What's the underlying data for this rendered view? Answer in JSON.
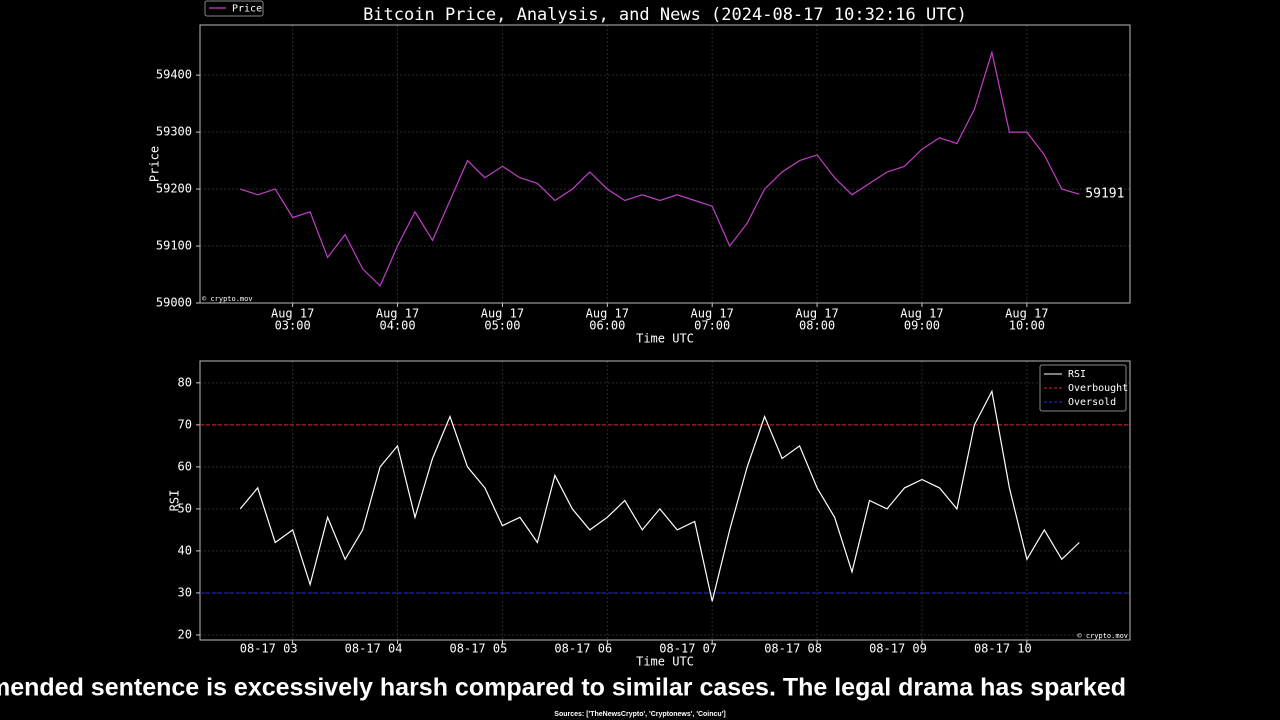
{
  "chart_data": [
    {
      "type": "line",
      "title": "Bitcoin Price, Analysis, and News (2024-08-17 10:32:16 UTC)",
      "xlabel": "Time UTC",
      "ylabel": "Price",
      "watermark": "© crypto.mov",
      "x": [
        "08-17 02:30",
        "08-17 02:40",
        "08-17 02:50",
        "08-17 03:00",
        "08-17 03:10",
        "08-17 03:20",
        "08-17 03:30",
        "08-17 03:40",
        "08-17 03:50",
        "08-17 04:00",
        "08-17 04:10",
        "08-17 04:20",
        "08-17 04:30",
        "08-17 04:40",
        "08-17 04:50",
        "08-17 05:00",
        "08-17 05:10",
        "08-17 05:20",
        "08-17 05:30",
        "08-17 05:40",
        "08-17 05:50",
        "08-17 06:00",
        "08-17 06:10",
        "08-17 06:20",
        "08-17 06:30",
        "08-17 06:40",
        "08-17 06:50",
        "08-17 07:00",
        "08-17 07:10",
        "08-17 07:20",
        "08-17 07:30",
        "08-17 07:40",
        "08-17 07:50",
        "08-17 08:00",
        "08-17 08:10",
        "08-17 08:20",
        "08-17 08:30",
        "08-17 08:40",
        "08-17 08:50",
        "08-17 09:00",
        "08-17 09:10",
        "08-17 09:20",
        "08-17 09:30",
        "08-17 09:40",
        "08-17 09:50",
        "08-17 10:00",
        "08-17 10:10",
        "08-17 10:20",
        "08-17 10:30"
      ],
      "series": [
        {
          "name": "Price",
          "color": "#c23fc7",
          "values": [
            59200,
            59190,
            59200,
            59150,
            59160,
            59080,
            59120,
            59060,
            59030,
            59100,
            59160,
            59110,
            59180,
            59250,
            59220,
            59240,
            59220,
            59210,
            59180,
            59200,
            59230,
            59200,
            59180,
            59190,
            59180,
            59190,
            59180,
            59170,
            59100,
            59140,
            59200,
            59230,
            59250,
            59260,
            59220,
            59190,
            59210,
            59230,
            59240,
            59270,
            59290,
            59280,
            59340,
            59440,
            59300,
            59300,
            59260,
            59200,
            59191
          ]
        }
      ],
      "xlim": [
        "08-17 02:07",
        "08-17 10:59"
      ],
      "ylim": [
        59000,
        59488
      ],
      "xticks": [
        {
          "value": "08-17 03:00",
          "label": [
            "Aug 17",
            "03:00"
          ]
        },
        {
          "value": "08-17 04:00",
          "label": [
            "Aug 17",
            "04:00"
          ]
        },
        {
          "value": "08-17 05:00",
          "label": [
            "Aug 17",
            "05:00"
          ]
        },
        {
          "value": "08-17 06:00",
          "label": [
            "Aug 17",
            "06:00"
          ]
        },
        {
          "value": "08-17 07:00",
          "label": [
            "Aug 17",
            "07:00"
          ]
        },
        {
          "value": "08-17 08:00",
          "label": [
            "Aug 17",
            "08:00"
          ]
        },
        {
          "value": "08-17 09:00",
          "label": [
            "Aug 17",
            "09:00"
          ]
        },
        {
          "value": "08-17 10:00",
          "label": [
            "Aug 17",
            "10:00"
          ]
        }
      ],
      "yticks": [
        59000,
        59100,
        59200,
        59300,
        59400
      ],
      "grid": true,
      "legend": "top-left-outside",
      "last_value_label": true
    },
    {
      "type": "line",
      "xlabel": "Time UTC",
      "ylabel": "RSI",
      "watermark": "© crypto.mov",
      "x": [
        "08-17 02:30",
        "08-17 02:40",
        "08-17 02:50",
        "08-17 03:00",
        "08-17 03:10",
        "08-17 03:20",
        "08-17 03:30",
        "08-17 03:40",
        "08-17 03:50",
        "08-17 04:00",
        "08-17 04:10",
        "08-17 04:20",
        "08-17 04:30",
        "08-17 04:40",
        "08-17 04:50",
        "08-17 05:00",
        "08-17 05:10",
        "08-17 05:20",
        "08-17 05:30",
        "08-17 05:40",
        "08-17 05:50",
        "08-17 06:00",
        "08-17 06:10",
        "08-17 06:20",
        "08-17 06:30",
        "08-17 06:40",
        "08-17 06:50",
        "08-17 07:00",
        "08-17 07:10",
        "08-17 07:20",
        "08-17 07:30",
        "08-17 07:40",
        "08-17 07:50",
        "08-17 08:00",
        "08-17 08:10",
        "08-17 08:20",
        "08-17 08:30",
        "08-17 08:40",
        "08-17 08:50",
        "08-17 09:00",
        "08-17 09:10",
        "08-17 09:20",
        "08-17 09:30",
        "08-17 09:40",
        "08-17 09:50",
        "08-17 10:00",
        "08-17 10:10",
        "08-17 10:20",
        "08-17 10:30"
      ],
      "series": [
        {
          "name": "RSI",
          "color": "#ffffff",
          "values": [
            50,
            55,
            42,
            45,
            32,
            48,
            38,
            45,
            60,
            65,
            48,
            62,
            72,
            60,
            55,
            46,
            48,
            42,
            58,
            50,
            45,
            48,
            52,
            45,
            50,
            45,
            47,
            28,
            45,
            60,
            72,
            62,
            65,
            55,
            48,
            35,
            52,
            50,
            55,
            57,
            55,
            50,
            70,
            78,
            55,
            38,
            45,
            38,
            42
          ]
        }
      ],
      "hlines": [
        {
          "name": "Overbought",
          "value": 70,
          "color": "#d62728"
        },
        {
          "name": "Oversold",
          "value": 30,
          "color": "#2a2ad6"
        }
      ],
      "xlim": [
        "08-17 02:07",
        "08-17 10:59"
      ],
      "ylim": [
        18.8,
        85.2
      ],
      "xticks": [
        {
          "value": "08-17 03:00",
          "label": "08-17 03"
        },
        {
          "value": "08-17 04:00",
          "label": "08-17 04"
        },
        {
          "value": "08-17 05:00",
          "label": "08-17 05"
        },
        {
          "value": "08-17 06:00",
          "label": "08-17 06"
        },
        {
          "value": "08-17 07:00",
          "label": "08-17 07"
        },
        {
          "value": "08-17 08:00",
          "label": "08-17 08"
        },
        {
          "value": "08-17 09:00",
          "label": "08-17 09"
        },
        {
          "value": "08-17 10:00",
          "label": "08-17 10"
        }
      ],
      "yticks": [
        20,
        30,
        40,
        50,
        60,
        70,
        80
      ],
      "grid": true,
      "legend": "upper-right"
    }
  ],
  "ticker": "mended sentence is excessively harsh compared to similar cases. The legal drama has sparked",
  "sources": "Sources: ['TheNewsCrypto', 'Cryptonews', 'Coincu']"
}
